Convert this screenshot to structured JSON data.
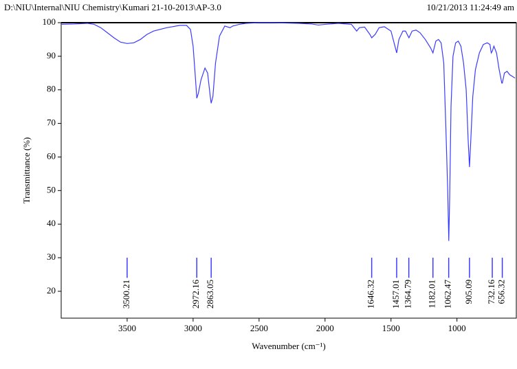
{
  "header": {
    "path": "D:\\NIU\\Internal\\NIU Chemistry\\Kumari 21-10-2013\\AP-3.0",
    "timestamp": "10/21/2013 11:24:49 am"
  },
  "chart_data": {
    "type": "line",
    "x_label": "Wavenumber (cm⁻¹)",
    "y_label": "Transmittance (%)",
    "xlim": [
      4000,
      550
    ],
    "ylim": [
      12,
      100
    ],
    "xticks": [
      3500,
      3000,
      2500,
      2000,
      1500,
      1000
    ],
    "yticks": [
      20,
      30,
      40,
      50,
      60,
      70,
      80,
      90,
      100
    ],
    "peaks": [
      3500.21,
      2972.16,
      2863.05,
      1646.32,
      1457.01,
      1364.79,
      1182.01,
      1062.47,
      905.09,
      732.16,
      656.32
    ],
    "series": [
      {
        "color": "#3a3aff",
        "x": [
          4000,
          3900,
          3800,
          3750,
          3700,
          3650,
          3600,
          3550,
          3500,
          3450,
          3400,
          3350,
          3300,
          3200,
          3100,
          3050,
          3020,
          3000,
          2985,
          2972,
          2960,
          2940,
          2910,
          2890,
          2870,
          2863,
          2850,
          2830,
          2800,
          2760,
          2720,
          2700,
          2650,
          2600,
          2500,
          2400,
          2200,
          2100,
          2050,
          2000,
          1900,
          1800,
          1760,
          1740,
          1700,
          1660,
          1646,
          1620,
          1590,
          1550,
          1500,
          1470,
          1457,
          1440,
          1410,
          1390,
          1364,
          1340,
          1310,
          1280,
          1240,
          1200,
          1182,
          1160,
          1140,
          1120,
          1100,
          1085,
          1070,
          1062,
          1055,
          1045,
          1030,
          1010,
          990,
          970,
          950,
          930,
          915,
          905,
          895,
          880,
          860,
          830,
          800,
          770,
          750,
          740,
          732,
          720,
          700,
          680,
          660,
          656,
          640,
          620,
          600,
          580,
          560
        ],
        "values": [
          99.5,
          99.6,
          99.8,
          99.5,
          98.5,
          97,
          95.5,
          94.2,
          93.8,
          94,
          95,
          96.5,
          97.5,
          98.5,
          99.2,
          99.2,
          98,
          93,
          85,
          77.5,
          79,
          83,
          86.5,
          85,
          78,
          76,
          78,
          88,
          96,
          99,
          98.5,
          99,
          99.5,
          99.8,
          100,
          100,
          99.8,
          99.6,
          99.3,
          99.5,
          99.8,
          99.5,
          97.5,
          98.5,
          98.7,
          96.5,
          95.5,
          96.5,
          98.5,
          98.8,
          97.5,
          93,
          91,
          95,
          97.5,
          97.5,
          95.5,
          97.5,
          97.8,
          97,
          95,
          92.5,
          91,
          94.5,
          95,
          94,
          88,
          70,
          50,
          35,
          48,
          75,
          90,
          94,
          94.5,
          93,
          88,
          80,
          65,
          57,
          65,
          78,
          86,
          91,
          93.5,
          94,
          93.5,
          91,
          91.5,
          93,
          91,
          86,
          82,
          82,
          85,
          85.5,
          84.5,
          84,
          83.5
        ]
      }
    ]
  }
}
